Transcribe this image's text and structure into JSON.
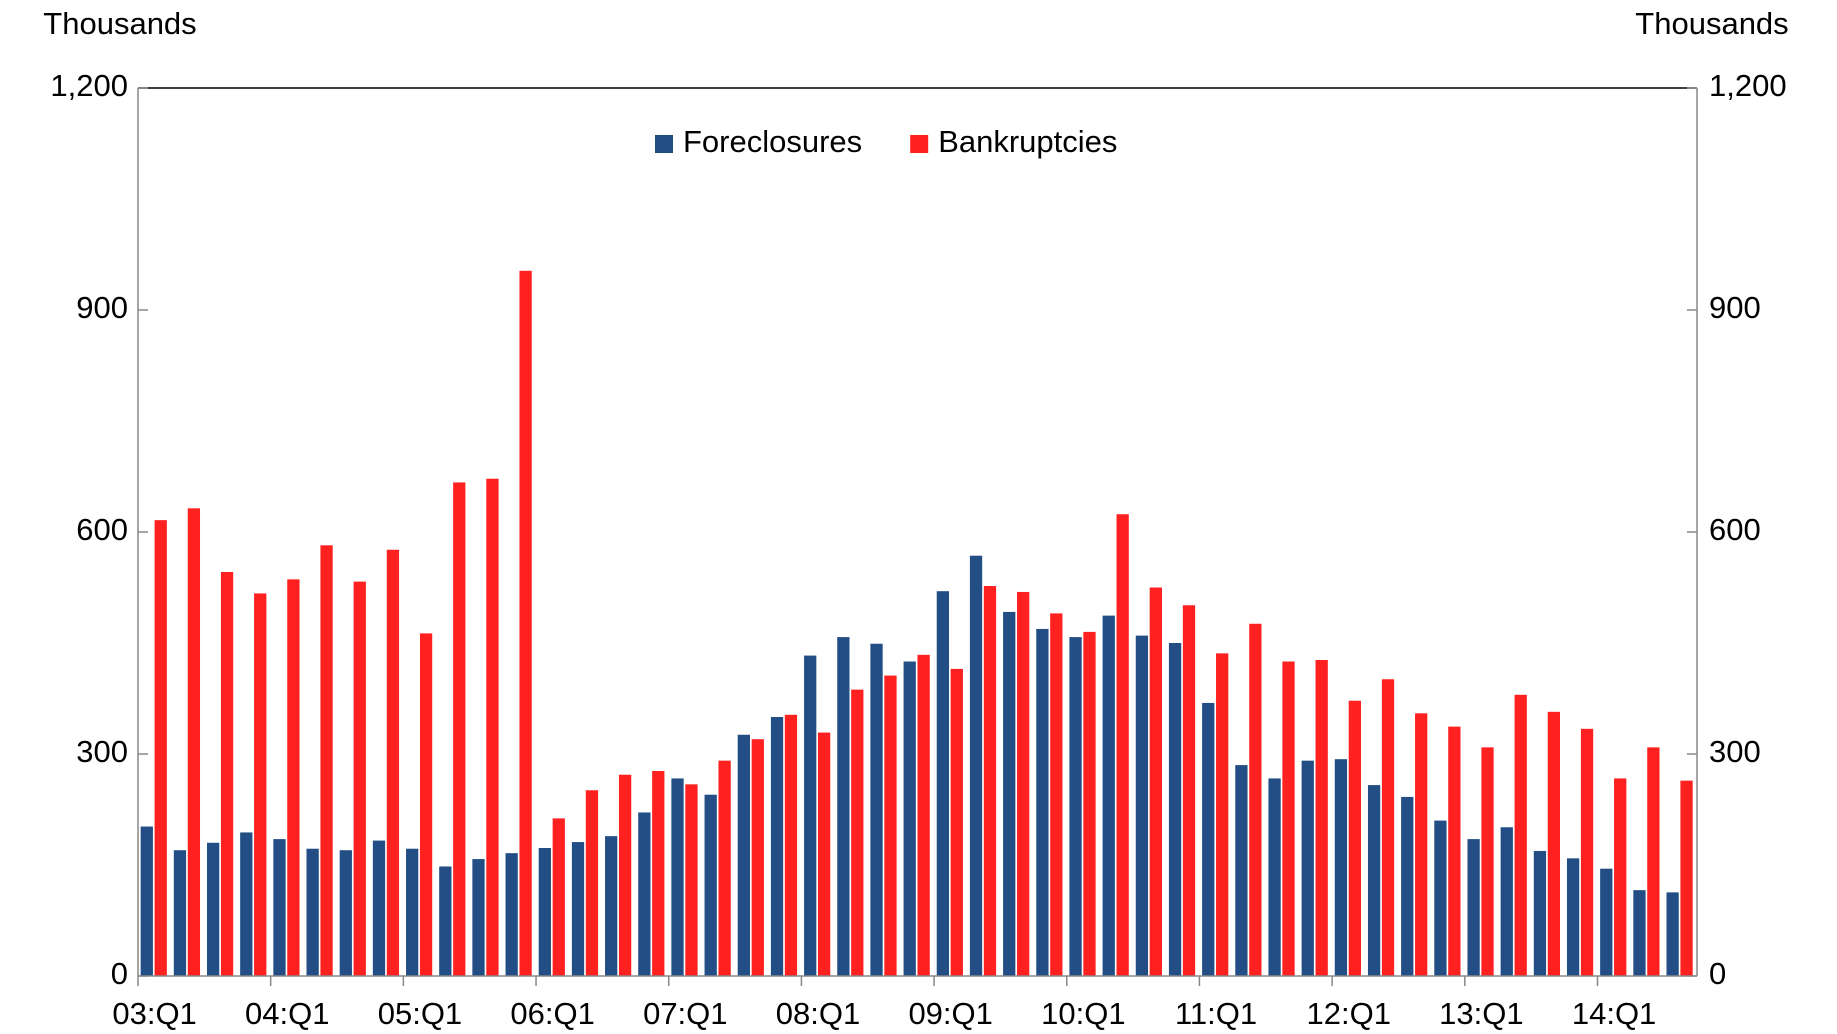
{
  "chart_data": {
    "type": "bar",
    "y_label": "Thousands",
    "y2_label": "Thousands",
    "categories": [
      "03:Q1",
      null,
      null,
      null,
      "04:Q1",
      null,
      null,
      null,
      "05:Q1",
      null,
      null,
      null,
      "06:Q1",
      null,
      null,
      null,
      "07:Q1",
      null,
      null,
      null,
      "08:Q1",
      null,
      null,
      null,
      "09:Q1",
      null,
      null,
      null,
      "10:Q1",
      null,
      null,
      null,
      "11:Q1",
      null,
      null,
      null,
      "12:Q1",
      null,
      null,
      null,
      "13:Q1",
      null,
      null,
      null,
      "14:Q1",
      null,
      null
    ],
    "series": [
      {
        "name": "Foreclosures",
        "color": "#234e85",
        "values": [
          202,
          170,
          180,
          194,
          185,
          172,
          170,
          183,
          172,
          148,
          158,
          166,
          173,
          181,
          189,
          221,
          267,
          245,
          326,
          350,
          433,
          458,
          449,
          425,
          520,
          568,
          492,
          469,
          458,
          487,
          460,
          450,
          369,
          285,
          267,
          291,
          293,
          258,
          242,
          210,
          185,
          201,
          169,
          159,
          145,
          116,
          113
        ]
      },
      {
        "name": "Bankruptcies",
        "color": "#ff2020",
        "values": [
          616,
          632,
          546,
          517,
          536,
          582,
          533,
          576,
          463,
          667,
          672,
          953,
          213,
          251,
          272,
          277,
          259,
          291,
          320,
          353,
          329,
          387,
          406,
          434,
          415,
          527,
          519,
          490,
          465,
          624,
          525,
          501,
          436,
          476,
          425,
          427,
          372,
          401,
          355,
          337,
          309,
          380,
          357,
          334,
          267,
          309,
          264
        ]
      }
    ],
    "ylim": [
      0,
      1200
    ],
    "yticks": [
      0,
      300,
      600,
      900,
      {
        "value": 1200,
        "label": "1,200"
      }
    ],
    "y2lim": [
      0,
      1200
    ],
    "y2ticks": [
      0,
      300,
      600,
      900,
      {
        "value": 1200,
        "label": "1,200"
      }
    ],
    "legend": "top"
  }
}
